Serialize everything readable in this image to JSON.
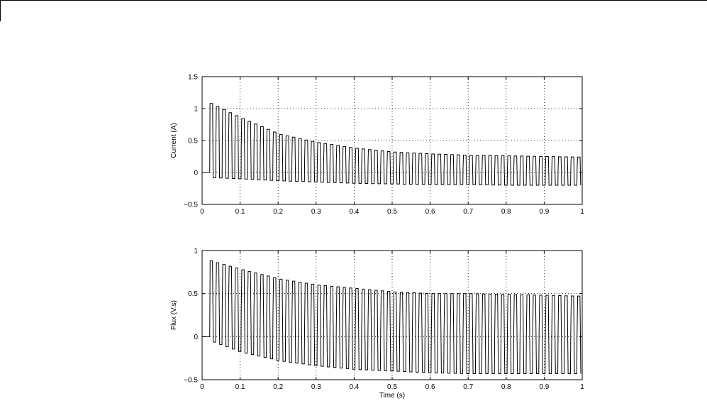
{
  "chart_data": [
    {
      "type": "line",
      "title": "",
      "xlabel": "",
      "ylabel": "Current (A)",
      "xlim": [
        0,
        1
      ],
      "ylim": [
        -0.5,
        1.5
      ],
      "xticks": [
        0,
        0.1,
        0.2,
        0.3,
        0.4,
        0.5,
        0.6,
        0.7,
        0.8,
        0.9,
        1
      ],
      "xtick_labels": [
        "0",
        "0.1",
        "0.2",
        "0.3",
        "0.4",
        "0.5",
        "0.6",
        "0.7",
        "0.8",
        "0.9",
        "1"
      ],
      "yticks": [
        -0.5,
        0,
        0.5,
        1,
        1.5
      ],
      "ytick_labels": [
        "−0.5",
        "0",
        "0.5",
        "1",
        "1.5"
      ],
      "grid": true,
      "line_color": "#000000",
      "signal": {
        "description": "oscillating current with decaying envelope",
        "start_time": 0.02,
        "period": 0.01667,
        "max_envelope": [
          [
            0.02,
            1.08
          ],
          [
            0.1,
            0.85
          ],
          [
            0.2,
            0.6
          ],
          [
            0.3,
            0.47
          ],
          [
            0.4,
            0.38
          ],
          [
            0.5,
            0.32
          ],
          [
            0.6,
            0.29
          ],
          [
            0.7,
            0.27
          ],
          [
            0.8,
            0.26
          ],
          [
            0.9,
            0.25
          ],
          [
            1.0,
            0.24
          ]
        ],
        "min_envelope": [
          [
            0.02,
            -0.08
          ],
          [
            0.1,
            -0.1
          ],
          [
            0.2,
            -0.13
          ],
          [
            0.3,
            -0.15
          ],
          [
            0.4,
            -0.17
          ],
          [
            0.5,
            -0.18
          ],
          [
            0.6,
            -0.19
          ],
          [
            0.7,
            -0.19
          ],
          [
            0.8,
            -0.2
          ],
          [
            0.9,
            -0.2
          ],
          [
            1.0,
            -0.2
          ]
        ],
        "plateau_fraction": 0.55
      }
    },
    {
      "type": "line",
      "title": "",
      "xlabel": "Time (s)",
      "ylabel": "Flux (V.s)",
      "xlim": [
        0,
        1
      ],
      "ylim": [
        -0.5,
        1
      ],
      "xticks": [
        0,
        0.1,
        0.2,
        0.3,
        0.4,
        0.5,
        0.6,
        0.7,
        0.8,
        0.9,
        1
      ],
      "xtick_labels": [
        "0",
        "0.1",
        "0.2",
        "0.3",
        "0.4",
        "0.5",
        "0.6",
        "0.7",
        "0.8",
        "0.9",
        "1"
      ],
      "yticks": [
        -0.5,
        0,
        0.5,
        1
      ],
      "ytick_labels": [
        "−0.5",
        "0",
        "0.5",
        "1"
      ],
      "grid": true,
      "line_color": "#000000",
      "signal": {
        "description": "oscillating flux with decaying envelope",
        "start_time": 0.02,
        "period": 0.01667,
        "max_envelope": [
          [
            0.02,
            0.88
          ],
          [
            0.1,
            0.78
          ],
          [
            0.2,
            0.67
          ],
          [
            0.3,
            0.6
          ],
          [
            0.4,
            0.56
          ],
          [
            0.5,
            0.52
          ],
          [
            0.6,
            0.5
          ],
          [
            0.7,
            0.5
          ],
          [
            0.8,
            0.49
          ],
          [
            0.9,
            0.48
          ],
          [
            1.0,
            0.47
          ]
        ],
        "min_envelope": [
          [
            0.02,
            -0.05
          ],
          [
            0.1,
            -0.18
          ],
          [
            0.2,
            -0.28
          ],
          [
            0.3,
            -0.34
          ],
          [
            0.4,
            -0.38
          ],
          [
            0.5,
            -0.4
          ],
          [
            0.6,
            -0.42
          ],
          [
            0.7,
            -0.43
          ],
          [
            0.8,
            -0.43
          ],
          [
            0.9,
            -0.43
          ],
          [
            1.0,
            -0.43
          ]
        ],
        "plateau_fraction": 0.35
      }
    }
  ]
}
